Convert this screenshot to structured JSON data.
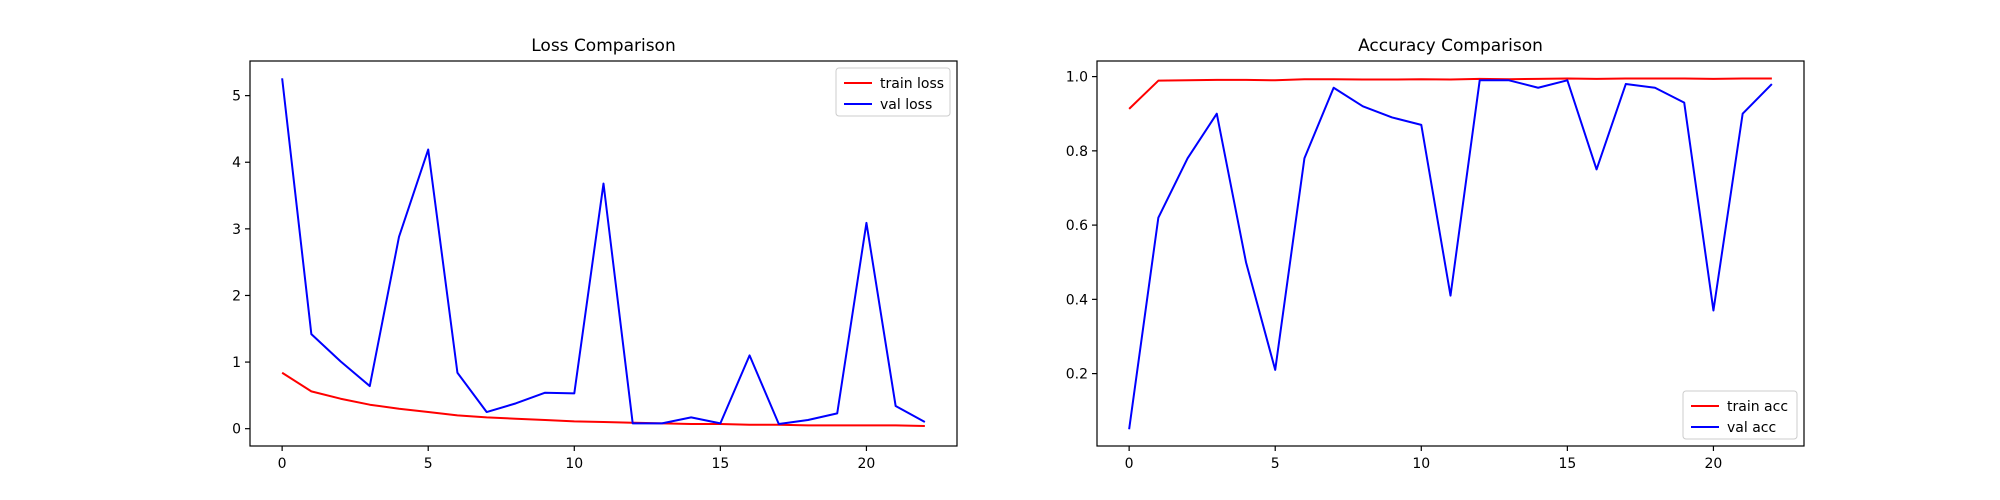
{
  "chart_data": [
    {
      "type": "line",
      "title": "Loss Comparison",
      "xlabel": "",
      "ylabel": "",
      "xlim": [
        -1.1,
        23.1
      ],
      "ylim": [
        -0.26,
        5.52
      ],
      "xticks": [
        0,
        5,
        10,
        15,
        20
      ],
      "yticks": [
        0,
        1,
        2,
        3,
        4,
        5
      ],
      "grid": false,
      "legend": "top-right",
      "x": [
        0,
        1,
        2,
        3,
        4,
        5,
        6,
        7,
        8,
        9,
        10,
        11,
        12,
        13,
        14,
        15,
        16,
        17,
        18,
        19,
        20,
        21,
        22
      ],
      "series": [
        {
          "name": "train loss",
          "color": "#ff0000",
          "values": [
            0.84,
            0.56,
            0.45,
            0.36,
            0.3,
            0.25,
            0.2,
            0.17,
            0.15,
            0.13,
            0.11,
            0.1,
            0.09,
            0.08,
            0.07,
            0.07,
            0.06,
            0.06,
            0.05,
            0.05,
            0.05,
            0.05,
            0.04
          ]
        },
        {
          "name": "val loss",
          "color": "#0000ff",
          "values": [
            5.26,
            1.42,
            1.01,
            0.64,
            2.88,
            4.19,
            0.84,
            0.25,
            0.38,
            0.54,
            0.53,
            3.68,
            0.08,
            0.08,
            0.17,
            0.08,
            1.1,
            0.07,
            0.13,
            0.23,
            3.09,
            0.34,
            0.1
          ]
        }
      ]
    },
    {
      "type": "line",
      "title": "Accuracy Comparison",
      "xlabel": "",
      "ylabel": "",
      "xlim": [
        -1.1,
        23.1
      ],
      "ylim": [
        0.005,
        1.042
      ],
      "xticks": [
        0,
        5,
        10,
        15,
        20
      ],
      "yticks": [
        0.2,
        0.4,
        0.6,
        0.8,
        1.0
      ],
      "grid": false,
      "legend": "bottom-right",
      "x": [
        0,
        1,
        2,
        3,
        4,
        5,
        6,
        7,
        8,
        9,
        10,
        11,
        12,
        13,
        14,
        15,
        16,
        17,
        18,
        19,
        20,
        21,
        22
      ],
      "series": [
        {
          "name": "train acc",
          "color": "#ff0000",
          "values": [
            0.913,
            0.989,
            0.99,
            0.991,
            0.991,
            0.99,
            0.993,
            0.993,
            0.992,
            0.992,
            0.993,
            0.992,
            0.994,
            0.993,
            0.994,
            0.995,
            0.994,
            0.995,
            0.995,
            0.995,
            0.994,
            0.995,
            0.995
          ]
        },
        {
          "name": "val acc",
          "color": "#0000ff",
          "values": [
            0.05,
            0.62,
            0.78,
            0.9,
            0.5,
            0.21,
            0.78,
            0.97,
            0.92,
            0.89,
            0.87,
            0.41,
            0.99,
            0.99,
            0.97,
            0.99,
            0.75,
            0.98,
            0.97,
            0.93,
            0.37,
            0.9,
            0.98
          ]
        }
      ]
    }
  ]
}
